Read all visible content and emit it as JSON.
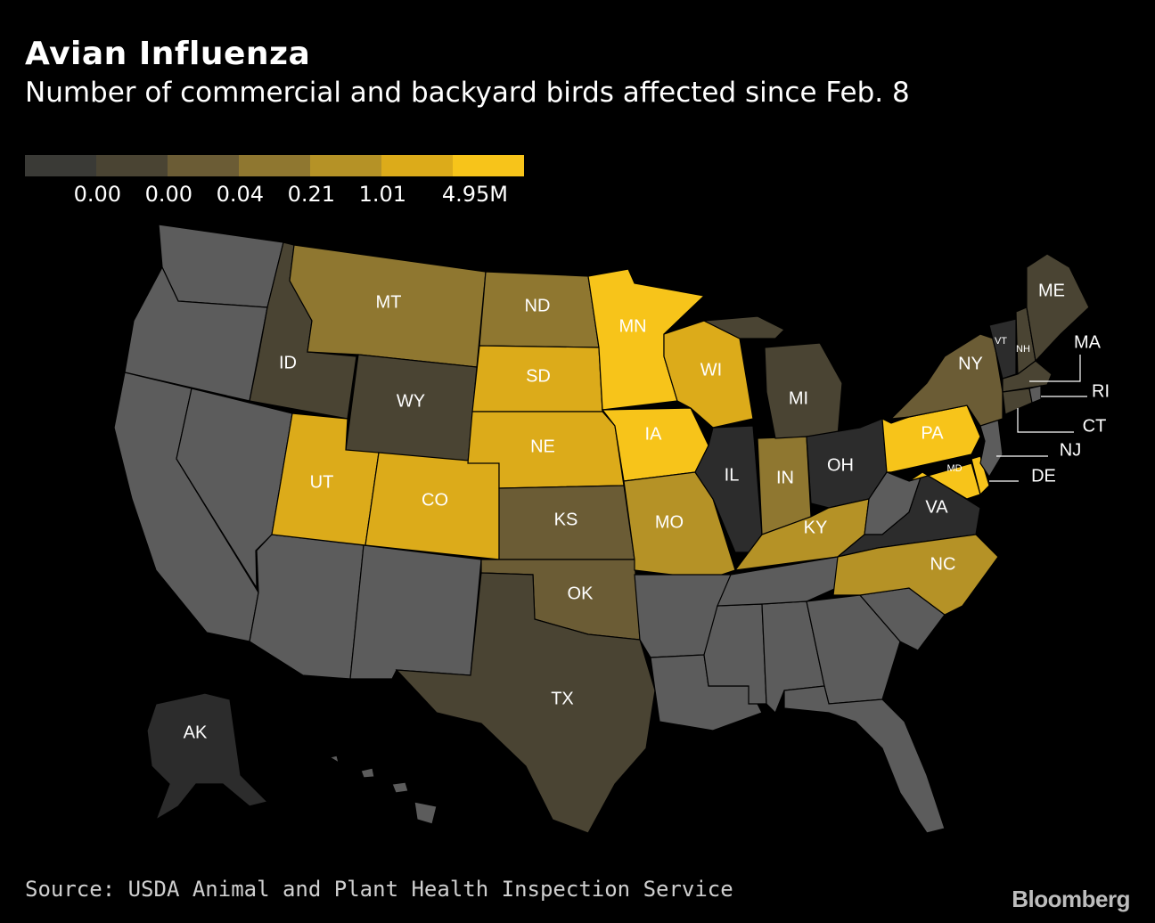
{
  "header": {
    "title": "Avian Influenza",
    "subtitle": "Number of commercial and backyard birds affected since Feb. 8"
  },
  "legend": {
    "colors": [
      "#3a3a36",
      "#4a4433",
      "#6b5c35",
      "#8f7730",
      "#b59226",
      "#dcab1a",
      "#f7c41a"
    ],
    "labels": [
      "0.00",
      "0.00",
      "0.04",
      "0.21",
      "1.01",
      "4.95M"
    ]
  },
  "colors": {
    "no_data": "#5c5c5c",
    "dark": "#2c2c2c",
    "background": "#000000"
  },
  "states": {
    "AK": "AK",
    "MT": "MT",
    "ND": "ND",
    "MN": "MN",
    "ID": "ID",
    "WY": "WY",
    "SD": "SD",
    "WI": "WI",
    "MI": "MI",
    "IA": "IA",
    "NE": "NE",
    "UT": "UT",
    "CO": "CO",
    "IL": "IL",
    "IN": "IN",
    "OH": "OH",
    "PA": "PA",
    "MD": "MD",
    "KS": "KS",
    "MO": "MO",
    "KY": "KY",
    "VA": "VA",
    "NC": "NC",
    "OK": "OK",
    "TX": "TX",
    "NY": "NY",
    "ME": "ME",
    "VT": "VT",
    "NH": "NH",
    "MA": "MA",
    "RI": "RI",
    "CT": "CT",
    "NJ": "NJ",
    "DE": "DE"
  },
  "footer": {
    "source": "Source: USDA Animal and Plant Health Inspection Service",
    "brand": "Bloomberg"
  }
}
